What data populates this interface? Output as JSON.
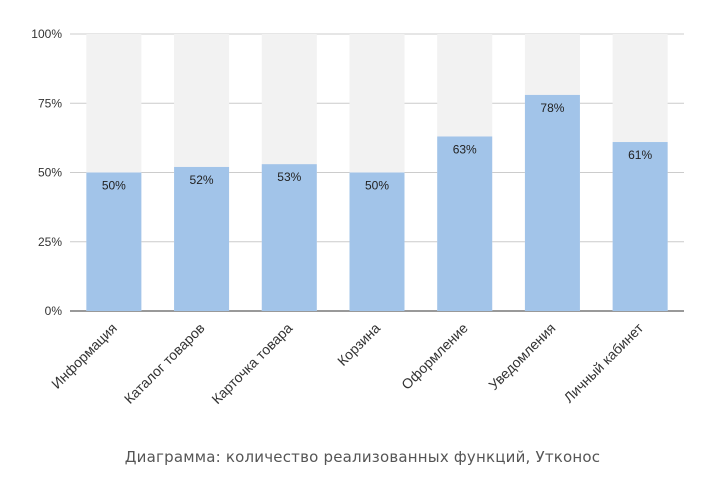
{
  "caption": "Диаграмма: количество реализованных функций, Утконос",
  "chart_data": {
    "type": "bar",
    "stacked_background": true,
    "categories": [
      "Информация",
      "Каталог товаров",
      "Карточка товара",
      "Корзина",
      "Оформление",
      "Уведомления",
      "Личный кабинет"
    ],
    "values": [
      50,
      52,
      53,
      50,
      63,
      78,
      61
    ],
    "data_labels": [
      "50%",
      "52%",
      "53%",
      "50%",
      "63%",
      "78%",
      "61%"
    ],
    "ylim": [
      0,
      100
    ],
    "yticks": [
      0,
      25,
      50,
      75,
      100
    ],
    "ytick_labels": [
      "0%",
      "25%",
      "50%",
      "75%",
      "100%"
    ],
    "grid": true,
    "colors": {
      "bar": "#a2c4e9",
      "background_bar": "#f2f2f2",
      "grid": "#cccccc",
      "axis": "#333333"
    }
  }
}
